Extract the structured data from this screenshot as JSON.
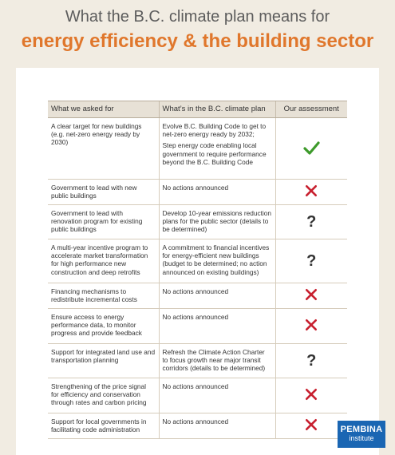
{
  "title_line1": "What the B.C. climate plan means for",
  "title_line2": "energy efficiency & the building sector",
  "table": {
    "headers": [
      "What we asked for",
      "What’s in the B.C. climate plan",
      "Our assessment"
    ],
    "rows": [
      {
        "asked": "A clear target for new buildings (e.g. net-zero energy ready by 2030)",
        "plan": "Evolve B.C. Building Code to get to net-zero energy ready by 2032;",
        "plan2": "Step energy code enabling local government to require performance beyond the B.C. Building Code",
        "assessment": "check",
        "assessment_color": "#3d9a2b"
      },
      {
        "asked": "Government to lead with new public buildings",
        "plan": "No actions announced",
        "assessment": "cross",
        "assessment_color": "#c8202f"
      },
      {
        "asked": "Government to lead with renovation program for existing public buildings",
        "plan": "Develop 10-year emissions reduction plans for the public sector (details to be determined)",
        "assessment": "question",
        "assessment_symbol": "?"
      },
      {
        "asked": "A multi-year incentive program to accelerate market transformation for high performance new construction and deep retrofits",
        "plan": "A commitment to financial incentives for energy-efficient new buildings (budget to be determined; no action announced on existing buildings)",
        "assessment": "question",
        "assessment_symbol": "?"
      },
      {
        "asked": "Financing mechanisms to redistribute incremental costs",
        "plan": "No actions announced",
        "assessment": "cross",
        "assessment_color": "#c8202f"
      },
      {
        "asked": "Ensure access to energy performance data, to monitor progress and provide feedback",
        "plan": "No actions announced",
        "assessment": "cross",
        "assessment_color": "#c8202f"
      },
      {
        "asked": "Support for integrated land use and transportation planning",
        "plan": "Refresh the Climate Action Charter to focus growth near major transit corridors (details to be determined)",
        "assessment": "question",
        "assessment_symbol": "?"
      },
      {
        "asked": "Strengthening of the price signal for efficiency and conservation through rates and carbon pricing",
        "plan": "No actions announced",
        "assessment": "cross",
        "assessment_color": "#c8202f"
      },
      {
        "asked": "Support for local governments in facilitating code administration",
        "plan": "No actions announced",
        "assessment": "cross",
        "assessment_color": "#c8202f"
      }
    ]
  },
  "logo": {
    "line1": "PEMBINA",
    "line2": "institute",
    "color": "#1a66b3"
  }
}
